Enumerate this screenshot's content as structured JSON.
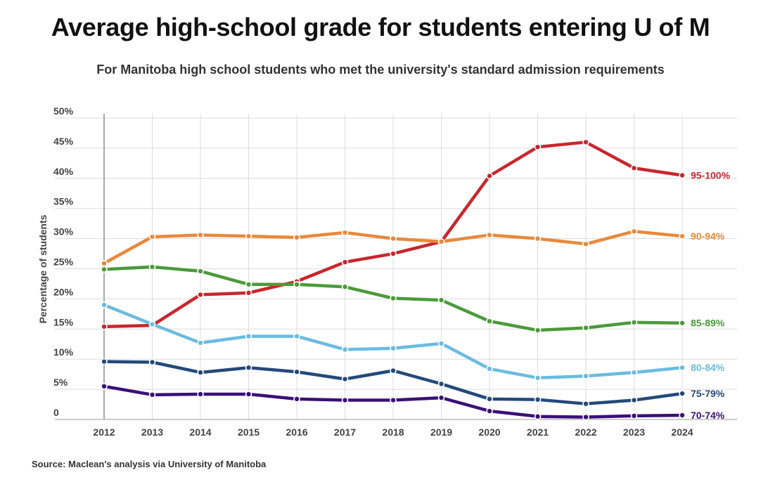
{
  "chart_data": {
    "type": "line",
    "title": "Average high-school grade for students entering U of M",
    "subtitle": "For Manitoba high school students who met the university's standard admission requirements",
    "source": "Source: Maclean's analysis via University of Manitoba",
    "ylabel": "Percentage of students",
    "xlabel": "",
    "ylim": [
      0,
      50
    ],
    "yticks": [
      {
        "value": 0,
        "label": "0"
      },
      {
        "value": 5,
        "label": "5%"
      },
      {
        "value": 10,
        "label": "10%"
      },
      {
        "value": 15,
        "label": "15%"
      },
      {
        "value": 20,
        "label": "20%"
      },
      {
        "value": 25,
        "label": "25%"
      },
      {
        "value": 30,
        "label": "30%"
      },
      {
        "value": 35,
        "label": "35%"
      },
      {
        "value": 40,
        "label": "40%"
      },
      {
        "value": 45,
        "label": "45%"
      },
      {
        "value": 50,
        "label": "50%"
      }
    ],
    "grid": true,
    "categories": [
      "2012",
      "2013",
      "2014",
      "2015",
      "2016",
      "2017",
      "2018",
      "2019",
      "2020",
      "2021",
      "2022",
      "2023",
      "2024"
    ],
    "series": [
      {
        "name": "95-100%",
        "color": "#c8262d",
        "values": [
          15.4,
          15.6,
          20.7,
          21.0,
          22.9,
          26.1,
          27.5,
          29.5,
          40.4,
          45.2,
          46.0,
          41.7,
          40.5
        ]
      },
      {
        "name": "90-94%",
        "color": "#e8893c",
        "values": [
          25.9,
          30.3,
          30.6,
          30.4,
          30.2,
          31.0,
          30.0,
          29.5,
          30.6,
          30.0,
          29.1,
          31.2,
          30.4
        ]
      },
      {
        "name": "85-89%",
        "color": "#4a9a3a",
        "values": [
          24.9,
          25.3,
          24.6,
          22.4,
          22.4,
          22.0,
          20.1,
          19.8,
          16.3,
          14.8,
          15.2,
          16.1,
          16.0
        ]
      },
      {
        "name": "80-84%",
        "color": "#6bbbe0",
        "values": [
          19.0,
          15.8,
          12.7,
          13.8,
          13.8,
          11.6,
          11.8,
          12.6,
          8.4,
          6.9,
          7.2,
          7.8,
          8.6
        ]
      },
      {
        "name": "75-79%",
        "color": "#24497a",
        "values": [
          9.6,
          9.5,
          7.8,
          8.6,
          7.9,
          6.7,
          8.1,
          5.9,
          3.4,
          3.3,
          2.6,
          3.2,
          4.3
        ]
      },
      {
        "name": "70-74%",
        "color": "#3a1078",
        "values": [
          5.5,
          4.1,
          4.2,
          4.2,
          3.4,
          3.2,
          3.2,
          3.6,
          1.4,
          0.5,
          0.4,
          0.6,
          0.7
        ]
      }
    ]
  }
}
